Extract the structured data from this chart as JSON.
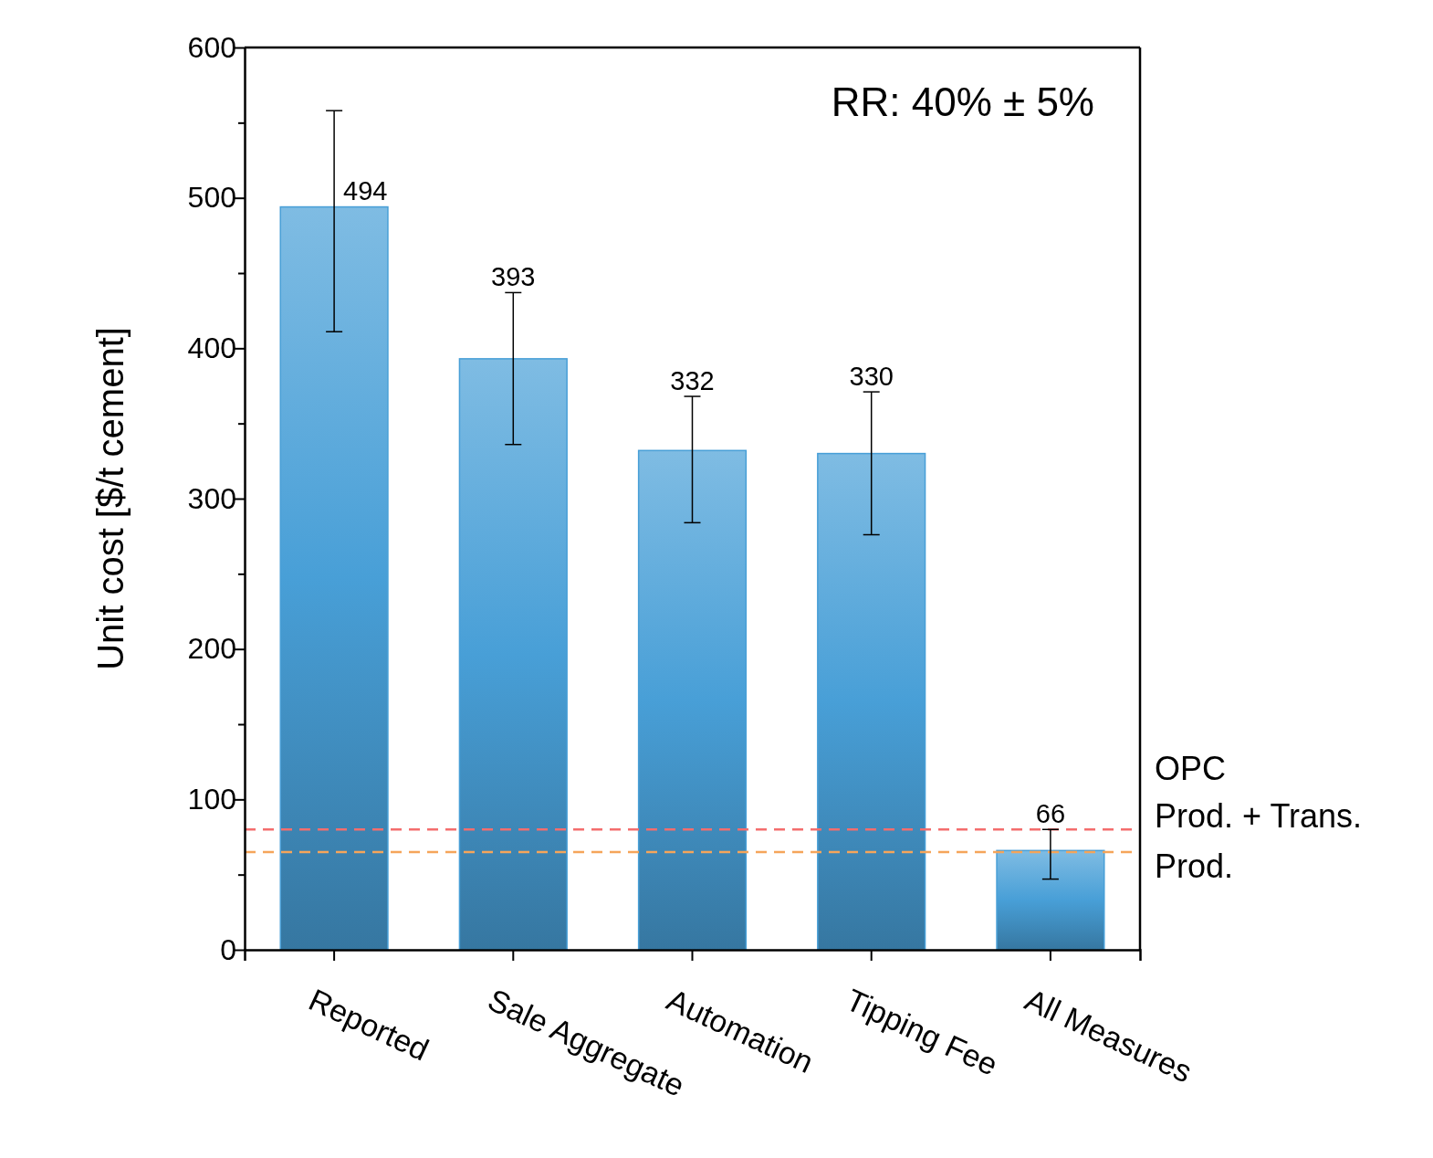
{
  "chart_data": {
    "type": "bar",
    "ylabel": "Unit cost [$/t cement]",
    "categories": [
      "Reported",
      "Sale Aggregate",
      "Automation",
      "Tipping Fee",
      "All Measures"
    ],
    "values": [
      494,
      393,
      332,
      330,
      66
    ],
    "errors": [
      [
        411,
        558
      ],
      [
        336,
        437
      ],
      [
        284,
        368
      ],
      [
        276,
        371
      ],
      [
        47,
        80
      ]
    ],
    "color": "#489fd7",
    "value_labels": [
      "494",
      "393",
      "332",
      "330",
      "66"
    ],
    "ylim": [
      0,
      600
    ],
    "yticks": [
      0,
      {
        "value": 50,
        "label": null
      },
      100,
      {
        "value": 150,
        "label": null
      },
      200,
      {
        "value": 250,
        "label": null
      },
      300,
      {
        "value": 350,
        "label": null
      },
      400,
      {
        "value": 450,
        "label": null
      },
      500,
      {
        "value": 550,
        "label": null
      },
      600
    ],
    "ref_lines": [
      {
        "axis": "y",
        "value": 80,
        "label": "Prod. + Trans.",
        "color": "#f46d6d",
        "line_style": "dashed"
      },
      {
        "axis": "y",
        "value": 65,
        "label": "Prod.",
        "color": "#f5a55a",
        "line_style": "dashed"
      }
    ],
    "annotations": [
      "RR: 40% ± 5%",
      "OPC"
    ],
    "grid": false
  }
}
